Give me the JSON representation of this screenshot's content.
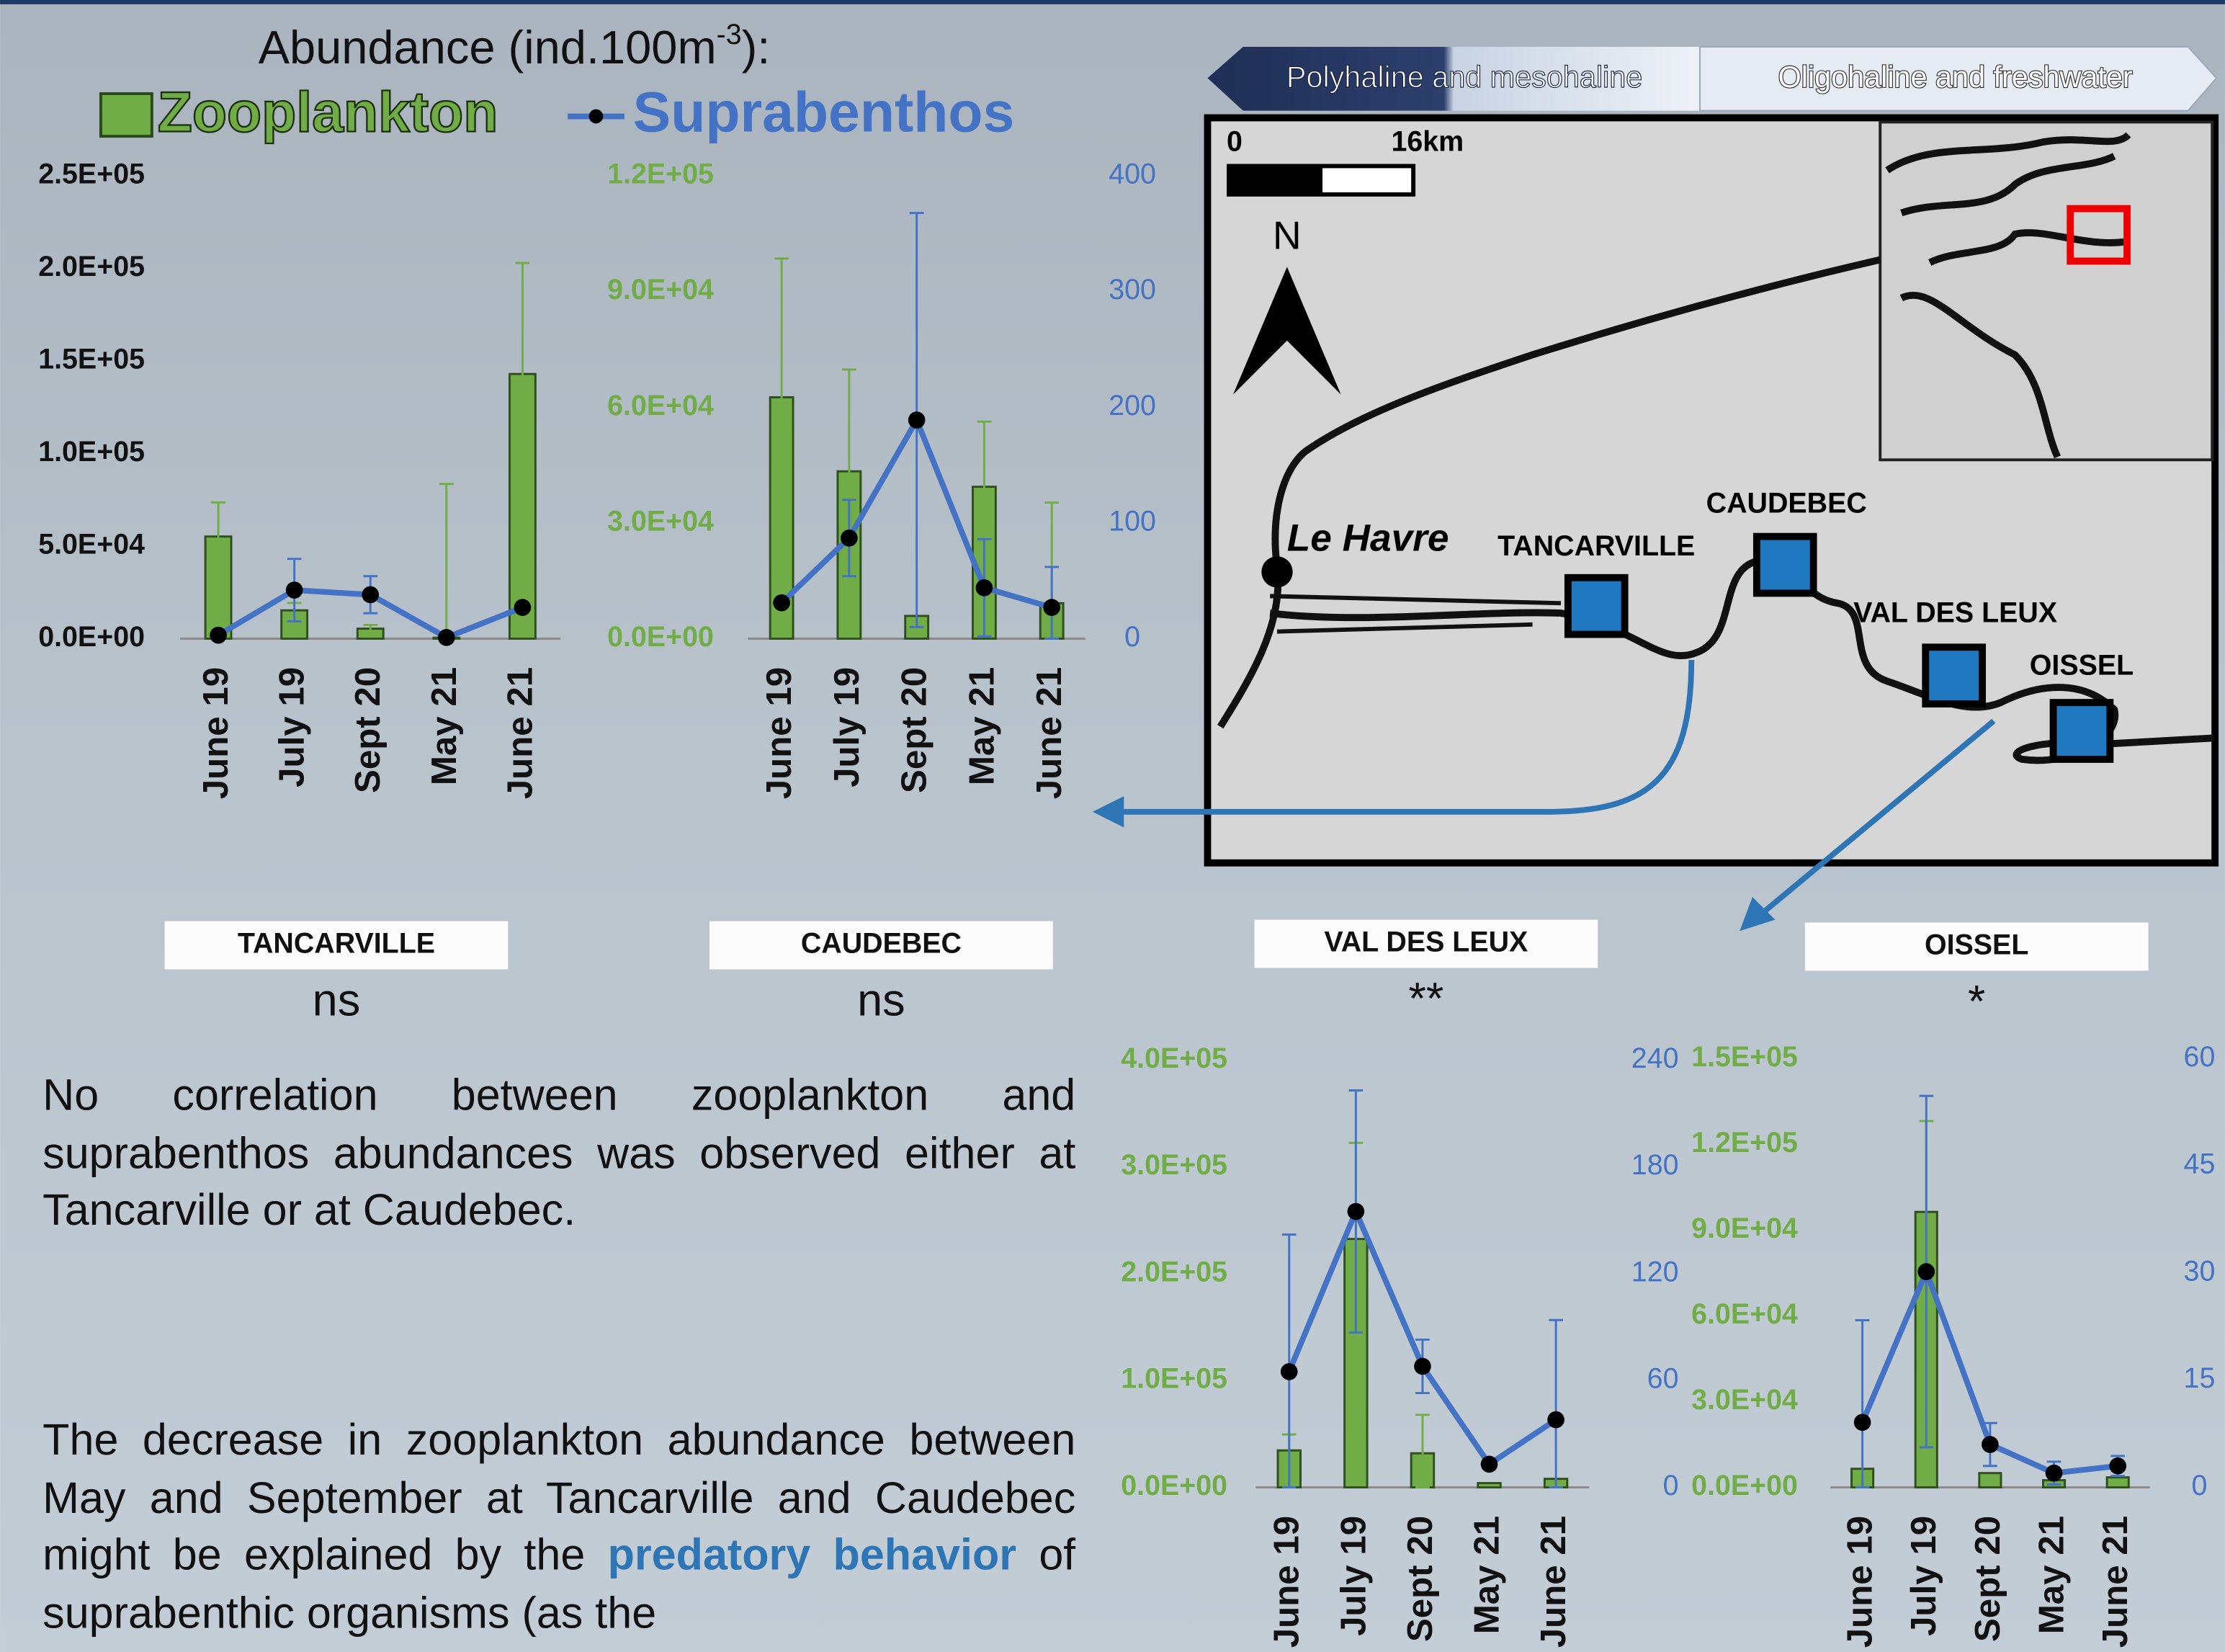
{
  "header": {
    "title_start": "Abundance (ind.100m",
    "title_sup": "-3",
    "title_end": "):"
  },
  "chart_data": [
    {
      "type": "bar-line",
      "title": "TANCARVILLE",
      "annotation": "ns",
      "categories": [
        "June 19",
        "July 19",
        "Sept 20",
        "May 21",
        "June 21"
      ],
      "ylim": [
        0,
        250000
      ],
      "yticks": [
        {
          "value": 0,
          "label": "0.0E+00"
        },
        {
          "value": 50000,
          "label": "5.0E+04"
        },
        {
          "value": 100000,
          "label": "1.0E+05"
        },
        {
          "value": 150000,
          "label": "1.5E+05"
        },
        {
          "value": 200000,
          "label": "2.0E+05"
        },
        {
          "value": 250000,
          "label": "2.5E+05"
        }
      ],
      "ytick_color": "#111111",
      "y2lim": [
        0,
        400
      ],
      "series": [
        {
          "name": "Zooplankton",
          "type": "bar",
          "color": "#70ad47",
          "values": [
            55200,
            15300,
            5400,
            500,
            143000
          ],
          "errors": [
            18400,
            4000,
            2000,
            83100,
            60000
          ]
        },
        {
          "name": "Suprabenthos",
          "type": "line",
          "axis": "y2",
          "color": "#4472c4",
          "values": [
            3,
            42,
            38,
            1,
            27
          ],
          "errors": [
            null,
            27,
            16,
            null,
            null
          ]
        }
      ]
    },
    {
      "type": "bar-line",
      "title": "CAUDEBEC",
      "annotation": "ns",
      "categories": [
        "June 19",
        "July 19",
        "Sept 20",
        "May 21",
        "June 21"
      ],
      "ylim": [
        0,
        120000
      ],
      "yticks": [
        {
          "value": 0,
          "label": "0.0E+00"
        },
        {
          "value": 30000,
          "label": "3.0E+04"
        },
        {
          "value": 60000,
          "label": "6.0E+04"
        },
        {
          "value": 90000,
          "label": "9.0E+04"
        },
        {
          "value": 120000,
          "label": "1.2E+05"
        }
      ],
      "ytick_color": "#70ad47",
      "y2lim": [
        0,
        400
      ],
      "y2ticks": [
        0,
        100,
        200,
        300,
        400
      ],
      "y2tick_color": "#4472c4",
      "series": [
        {
          "name": "Zooplankton",
          "type": "bar",
          "color": "#70ad47",
          "values": [
            62600,
            43400,
            5900,
            39400,
            9200
          ],
          "errors": [
            36000,
            26400,
            null,
            16900,
            26100
          ]
        },
        {
          "name": "Suprabenthos",
          "type": "line",
          "axis": "y2",
          "color": "#4472c4",
          "values": [
            31,
            87,
            189,
            44,
            27
          ],
          "errors": [
            null,
            33,
            179,
            42,
            35
          ]
        }
      ]
    },
    {
      "type": "bar-line",
      "title": "VAL DES LEUX",
      "annotation": "**",
      "categories": [
        "June 19",
        "July 19",
        "Sept 20",
        "May 21",
        "June 21"
      ],
      "ylim": [
        0,
        400000
      ],
      "yticks": [
        {
          "value": 0,
          "label": "0.0E+00"
        },
        {
          "value": 100000,
          "label": "1.0E+05"
        },
        {
          "value": 200000,
          "label": "2.0E+05"
        },
        {
          "value": 300000,
          "label": "3.0E+05"
        },
        {
          "value": 400000,
          "label": "4.0E+05"
        }
      ],
      "ytick_color": "#70ad47",
      "y2lim": [
        0,
        240
      ],
      "y2ticks": [
        0,
        60,
        120,
        180,
        240
      ],
      "y2tick_color": "#4472c4",
      "series": [
        {
          "name": "Zooplankton",
          "type": "bar",
          "color": "#70ad47",
          "values": [
            34600,
            232600,
            31900,
            4000,
            8000
          ],
          "errors": [
            15000,
            90000,
            36000,
            null,
            null
          ]
        },
        {
          "name": "Suprabenthos",
          "type": "line",
          "axis": "y2",
          "color": "#4472c4",
          "values": [
            65,
            155,
            68,
            13,
            38
          ],
          "errors": [
            77,
            68,
            15,
            null,
            56
          ]
        }
      ]
    },
    {
      "type": "bar-line",
      "title": "OISSEL",
      "annotation": "*",
      "categories": [
        "June 19",
        "July 19",
        "Sept 20",
        "May 21",
        "June 21"
      ],
      "ylim": [
        0,
        150000
      ],
      "yticks": [
        {
          "value": 0,
          "label": "0.0E+00"
        },
        {
          "value": 30000,
          "label": "3.0E+04"
        },
        {
          "value": 60000,
          "label": "6.0E+04"
        },
        {
          "value": 90000,
          "label": "9.0E+04"
        },
        {
          "value": 120000,
          "label": "1.2E+05"
        },
        {
          "value": 150000,
          "label": "1.5E+05"
        }
      ],
      "ytick_color": "#70ad47",
      "y2lim": [
        0,
        60
      ],
      "y2ticks": [
        0,
        15,
        30,
        45,
        60
      ],
      "y2tick_color": "#4472c4",
      "series": [
        {
          "name": "Zooplankton",
          "type": "bar",
          "color": "#70ad47",
          "values": [
            6500,
            96400,
            5000,
            2500,
            3500
          ],
          "errors": [
            null,
            31800,
            null,
            null,
            null
          ]
        },
        {
          "name": "Suprabenthos",
          "type": "line",
          "axis": "y2",
          "color": "#4472c4",
          "values": [
            9.1,
            30.2,
            6,
            2,
            3
          ],
          "errors": [
            14.3,
            24.6,
            3,
            1.6,
            1.4
          ]
        }
      ]
    }
  ],
  "map": {
    "banner_left": "Polyhaline and mesohaline",
    "banner_right": "Oligohaline and freshwater",
    "scale_start": "0",
    "scale_end": "16km",
    "north": "N",
    "city": "Le Havre",
    "sites": [
      "TANCARVILLE",
      "CAUDEBEC",
      "VAL DES LEUX",
      "OISSEL"
    ]
  },
  "text": {
    "paragraph1": "No correlation between zooplankton and suprabenthos abundances was observed either at Tancarville or at Caudebec.",
    "paragraph2_start": "The decrease in zooplankton abundance between May and September at Tancarville and Caudebec might be explained by the ",
    "paragraph2_highlight": "predatory behavior",
    "paragraph2_end": " of suprabenthic organisms (as the"
  }
}
